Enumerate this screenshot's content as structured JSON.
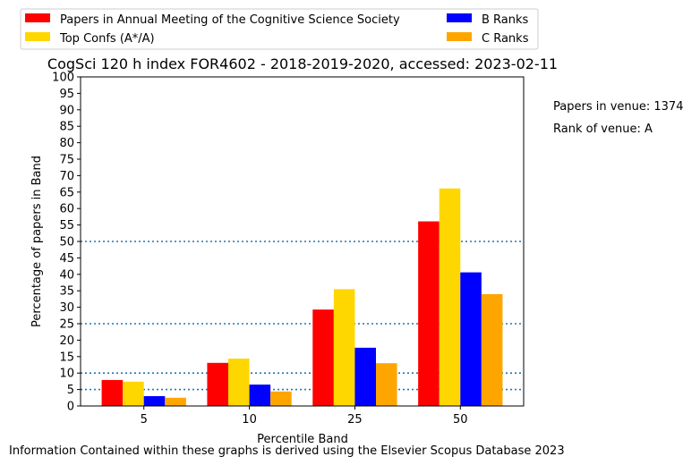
{
  "chart_data": {
    "type": "bar",
    "title": "CogSci 120 h index FOR4602 - 2018-2019-2020, accessed: 2023-02-11",
    "xlabel": "Percentile Band",
    "ylabel": "Percentage of papers in Band",
    "categories": [
      "5",
      "10",
      "25",
      "50"
    ],
    "ylim": [
      0,
      100
    ],
    "yticks": [
      0,
      5,
      10,
      15,
      20,
      25,
      30,
      35,
      40,
      45,
      50,
      55,
      60,
      65,
      70,
      75,
      80,
      85,
      90,
      95,
      100
    ],
    "reference_lines": [
      5,
      10,
      25,
      50
    ],
    "legend_position": "top, above plot, two columns",
    "series": [
      {
        "name": "Papers in Annual Meeting of the Cognitive Science Society",
        "color": "#ff0000",
        "values": [
          7.9,
          13.1,
          29.3,
          56.1
        ]
      },
      {
        "name": "Top Confs (A*/A)",
        "color": "#ffd700",
        "values": [
          7.4,
          14.4,
          35.5,
          66.1
        ]
      },
      {
        "name": "B Ranks",
        "color": "#0000ff",
        "values": [
          3.0,
          6.5,
          17.7,
          40.6
        ]
      },
      {
        "name": "C Ranks",
        "color": "#ffa500",
        "values": [
          2.5,
          4.4,
          13.0,
          34.0
        ]
      }
    ]
  },
  "side_notes": {
    "papers_in_venue": "Papers in venue: 1374",
    "rank_of_venue": "Rank of venue: A"
  },
  "footer": "Information Contained within these graphs is derived using the Elsevier Scopus Database 2023",
  "colors": {
    "reference_line": "#1f77b4"
  }
}
